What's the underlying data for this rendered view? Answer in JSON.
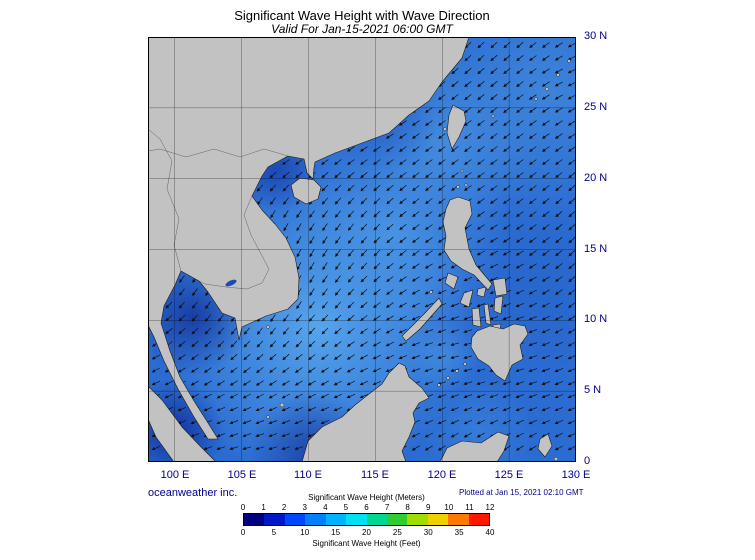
{
  "title": "Significant Wave Height with Wave Direction",
  "subtitle": "Valid For Jan-15-2021 06:00 GMT",
  "axes": {
    "lon": [
      "100 E",
      "105 E",
      "110 E",
      "115 E",
      "120 E",
      "125 E",
      "130 E"
    ],
    "lat": [
      "30 N",
      "25 N",
      "20 N",
      "15 N",
      "10 N",
      "5 N",
      "0"
    ]
  },
  "footer": {
    "credit": "oceanweather inc.",
    "plotted": "Plotted at Jan 15, 2021 02:10 GMT"
  },
  "legend": {
    "title_meters": "Significant Wave Height (Meters)",
    "title_feet": "Significant Wave Height (Feet)",
    "meters_ticks": [
      "0",
      "1",
      "2",
      "3",
      "4",
      "5",
      "6",
      "7",
      "8",
      "9",
      "10",
      "11",
      "12"
    ],
    "feet_ticks": [
      "0",
      "5",
      "10",
      "15",
      "20",
      "25",
      "30",
      "35",
      "40"
    ],
    "colors": [
      "#000080",
      "#0018c8",
      "#0048ff",
      "#0080ff",
      "#00b4ff",
      "#00e0f0",
      "#00d890",
      "#30cc30",
      "#a0dc00",
      "#f0d000",
      "#ff7800",
      "#ff1800"
    ]
  },
  "map_content": {
    "wave_direction_note": "arrows over ocean point generally west-southwest (northeast monsoon)",
    "ocean_base_color": "#2b6cd2",
    "land_color": "#c2c2c2"
  }
}
